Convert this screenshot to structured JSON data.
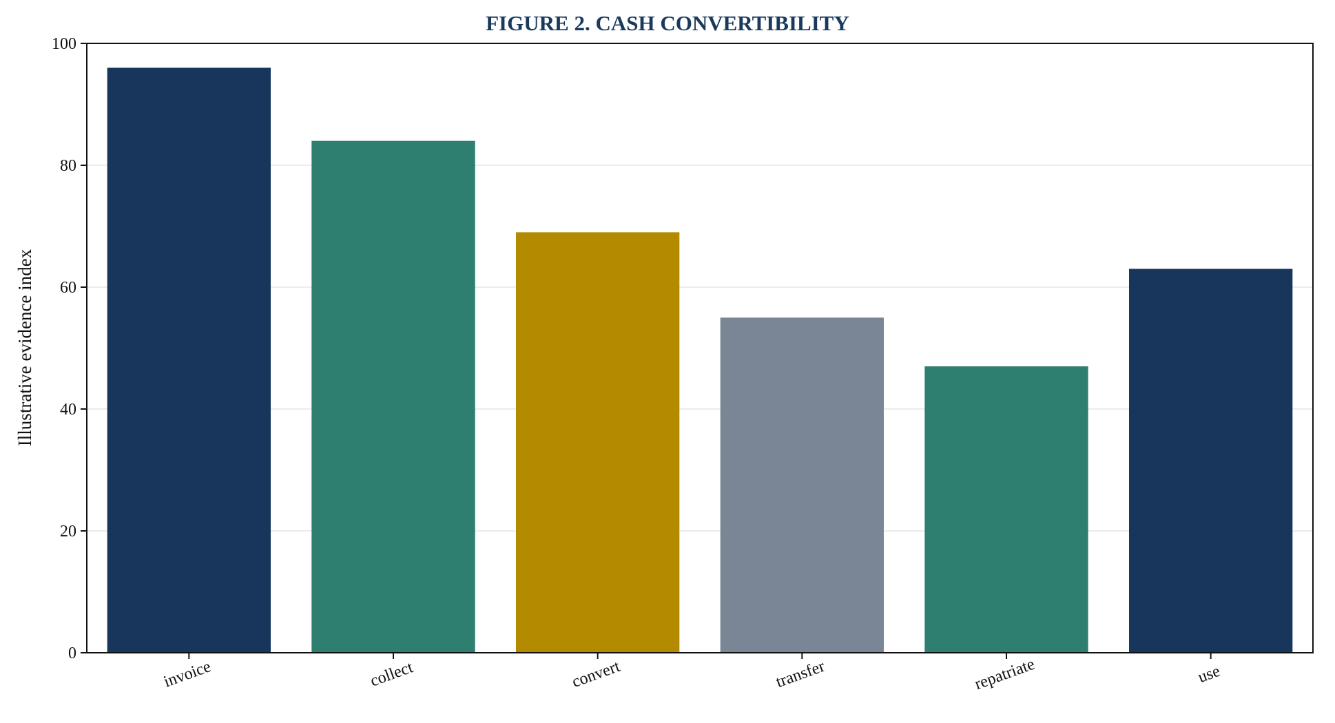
{
  "chart_data": {
    "type": "bar",
    "title": "FIGURE 2. CASH CONVERTIBILITY",
    "xlabel": "",
    "ylabel": "Illustrative evidence index",
    "categories": [
      "invoice",
      "collect",
      "convert",
      "transfer",
      "repatriate",
      "use"
    ],
    "values": [
      96,
      84,
      69,
      55,
      47,
      63
    ],
    "bar_colors": [
      "#18365c",
      "#2e7f6f",
      "#b38a00",
      "#7a8696",
      "#2e7f6f",
      "#18365c"
    ],
    "ylim": [
      0,
      100
    ],
    "yticks": [
      0,
      20,
      40,
      60,
      80,
      100
    ],
    "grid": "horizontal",
    "legend": "none"
  }
}
